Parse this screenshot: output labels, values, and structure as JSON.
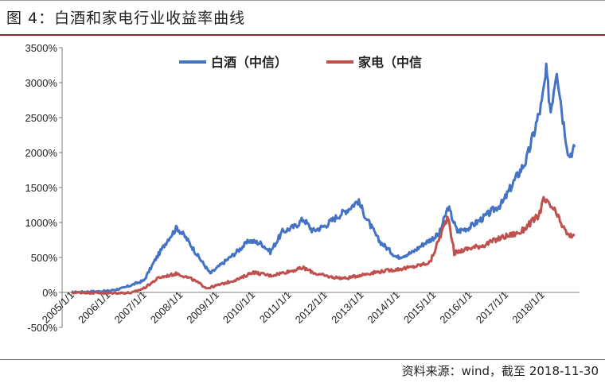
{
  "header": {
    "title": "图 4：白酒和家电行业收益率曲线"
  },
  "footer": {
    "source": "资料来源：wind，截至 2018-11-30"
  },
  "chart_data": {
    "type": "line",
    "title": "",
    "xlabel": "",
    "ylabel": "",
    "ylim": [
      -500,
      3500
    ],
    "y_ticks": [
      "-500%",
      "0%",
      "500%",
      "1000%",
      "1500%",
      "2000%",
      "2500%",
      "3000%",
      "3500%"
    ],
    "y_tick_values": [
      -500,
      0,
      500,
      1000,
      1500,
      2000,
      2500,
      3000,
      3500
    ],
    "x_ticks": [
      "2005/1/1",
      "2006/1/1",
      "2007/1/1",
      "2008/1/1",
      "2009/1/1",
      "2010/1/1",
      "2011/1/1",
      "2012/1/1",
      "2013/1/1",
      "2014/1/1",
      "2015/1/1",
      "2016/1/1",
      "2017/1/1",
      "2018/1/1"
    ],
    "legend_position": "top-center",
    "grid": false,
    "series": [
      {
        "name": "白酒（中信）",
        "color": "#4472C4",
        "points": [
          [
            "2005-01-01",
            0
          ],
          [
            "2005-06-01",
            10
          ],
          [
            "2006-01-01",
            20
          ],
          [
            "2006-06-01",
            60
          ],
          [
            "2007-01-01",
            170
          ],
          [
            "2007-05-01",
            480
          ],
          [
            "2007-09-01",
            760
          ],
          [
            "2007-12-01",
            930
          ],
          [
            "2008-03-01",
            780
          ],
          [
            "2008-07-01",
            520
          ],
          [
            "2008-11-01",
            270
          ],
          [
            "2009-03-01",
            410
          ],
          [
            "2009-07-01",
            550
          ],
          [
            "2009-12-01",
            740
          ],
          [
            "2010-04-01",
            700
          ],
          [
            "2010-07-01",
            580
          ],
          [
            "2010-11-01",
            870
          ],
          [
            "2011-03-01",
            940
          ],
          [
            "2011-06-01",
            1050
          ],
          [
            "2011-09-01",
            880
          ],
          [
            "2012-01-01",
            950
          ],
          [
            "2012-05-01",
            1080
          ],
          [
            "2012-09-01",
            1200
          ],
          [
            "2012-12-01",
            1310
          ],
          [
            "2013-03-01",
            1050
          ],
          [
            "2013-07-01",
            740
          ],
          [
            "2014-01-01",
            500
          ],
          [
            "2014-06-01",
            570
          ],
          [
            "2014-10-01",
            700
          ],
          [
            "2015-03-01",
            830
          ],
          [
            "2015-06-01",
            1220
          ],
          [
            "2015-09-01",
            870
          ],
          [
            "2016-01-01",
            930
          ],
          [
            "2016-06-01",
            1080
          ],
          [
            "2016-12-01",
            1280
          ],
          [
            "2017-04-01",
            1600
          ],
          [
            "2017-08-01",
            1900
          ],
          [
            "2018-01-01",
            2700
          ],
          [
            "2018-02-15",
            3150
          ],
          [
            "2018-04-01",
            2600
          ],
          [
            "2018-06-01",
            3220
          ],
          [
            "2018-08-01",
            2500
          ],
          [
            "2018-10-01",
            1950
          ],
          [
            "2018-11-30",
            2080
          ]
        ]
      },
      {
        "name": "家电（中信",
        "color": "#C0504D",
        "points": [
          [
            "2005-01-01",
            0
          ],
          [
            "2006-01-01",
            -10
          ],
          [
            "2006-09-01",
            -5
          ],
          [
            "2007-01-01",
            60
          ],
          [
            "2007-06-01",
            210
          ],
          [
            "2007-12-01",
            270
          ],
          [
            "2008-05-01",
            190
          ],
          [
            "2008-10-01",
            60
          ],
          [
            "2009-03-01",
            120
          ],
          [
            "2009-09-01",
            200
          ],
          [
            "2010-01-01",
            290
          ],
          [
            "2010-07-01",
            240
          ],
          [
            "2011-01-01",
            300
          ],
          [
            "2011-06-01",
            350
          ],
          [
            "2011-10-01",
            270
          ],
          [
            "2012-03-01",
            220
          ],
          [
            "2012-08-01",
            200
          ],
          [
            "2013-01-01",
            250
          ],
          [
            "2013-06-01",
            290
          ],
          [
            "2014-01-01",
            330
          ],
          [
            "2014-06-01",
            360
          ],
          [
            "2014-12-01",
            430
          ],
          [
            "2015-06-01",
            1100
          ],
          [
            "2015-08-01",
            560
          ],
          [
            "2015-12-01",
            620
          ],
          [
            "2016-06-01",
            680
          ],
          [
            "2016-12-01",
            790
          ],
          [
            "2017-06-01",
            860
          ],
          [
            "2017-12-01",
            1100
          ],
          [
            "2018-01-20",
            1320
          ],
          [
            "2018-05-01",
            1190
          ],
          [
            "2018-08-01",
            940
          ],
          [
            "2018-10-01",
            800
          ],
          [
            "2018-11-30",
            830
          ]
        ]
      }
    ]
  }
}
